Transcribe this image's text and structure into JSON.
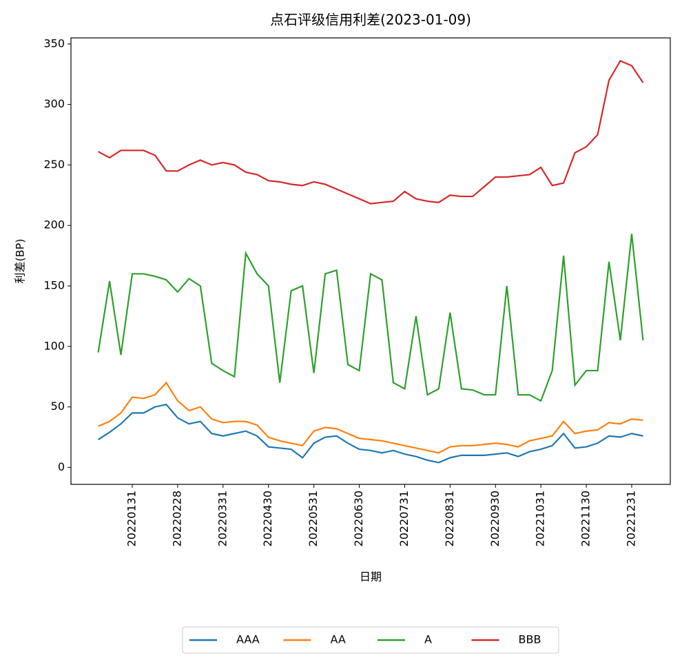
{
  "chart_data": {
    "type": "line",
    "title": "点石评级信用利差(2023-01-09)",
    "x_label": "日期",
    "y_label": "利差(BP)",
    "x": [
      "20220105",
      "20220114",
      "20220121",
      "20220131",
      "20220209",
      "20220215",
      "20220222",
      "20220228",
      "20220308",
      "20220315",
      "20220322",
      "20220331",
      "20220408",
      "20220415",
      "20220422",
      "20220430",
      "20220510",
      "20220517",
      "20220524",
      "20220531",
      "20220609",
      "20220616",
      "20220623",
      "20220630",
      "20220708",
      "20220715",
      "20220722",
      "20220731",
      "20220808",
      "20220815",
      "20220822",
      "20220831",
      "20220908",
      "20220915",
      "20220922",
      "20220930",
      "20221014",
      "20221019",
      "20221025",
      "20221031",
      "20221108",
      "20221115",
      "20221122",
      "20221130",
      "20221208",
      "20221215",
      "20221222",
      "20221231",
      "20230109"
    ],
    "xticks": [
      "20220131",
      "20220228",
      "20220331",
      "20220430",
      "20220531",
      "20220630",
      "20220731",
      "20220831",
      "20220930",
      "20221031",
      "20221130",
      "20221231"
    ],
    "ylim": [
      -14,
      355
    ],
    "yticks": [
      0,
      50,
      100,
      150,
      200,
      250,
      300,
      350
    ],
    "legend": "bottom",
    "series": [
      {
        "name": "AAA",
        "color": "#1f77b4",
        "values": [
          23,
          29,
          36,
          45,
          45,
          50,
          52,
          41,
          36,
          38,
          28,
          26,
          28,
          30,
          26,
          17,
          16,
          15,
          8,
          20,
          25,
          26,
          20,
          15,
          14,
          12,
          14,
          11,
          9,
          6,
          4,
          8,
          10,
          10,
          10,
          11,
          12,
          9,
          13,
          15,
          18,
          28,
          16,
          17,
          20,
          26,
          25,
          28,
          26
        ]
      },
      {
        "name": "AA",
        "color": "#ff7f0e",
        "values": [
          34,
          38,
          45,
          58,
          57,
          60,
          70,
          55,
          47,
          50,
          40,
          37,
          38,
          38,
          35,
          25,
          22,
          20,
          18,
          30,
          33,
          32,
          28,
          24,
          23,
          22,
          20,
          18,
          16,
          14,
          12,
          17,
          18,
          18,
          19,
          20,
          19,
          17,
          22,
          24,
          26,
          38,
          28,
          30,
          31,
          37,
          36,
          40,
          39
        ]
      },
      {
        "name": "A",
        "color": "#2ca02c",
        "values": [
          95,
          154,
          93,
          160,
          160,
          158,
          155,
          145,
          156,
          150,
          86,
          80,
          75,
          177,
          160,
          150,
          70,
          146,
          150,
          78,
          160,
          163,
          85,
          80,
          160,
          155,
          70,
          65,
          125,
          60,
          65,
          128,
          65,
          64,
          60,
          60,
          150,
          60,
          60,
          55,
          80,
          175,
          68,
          80,
          80,
          170,
          105,
          193,
          105
        ]
      },
      {
        "name": "BBB",
        "color": "#d62728",
        "values": [
          261,
          256,
          262,
          262,
          262,
          258,
          245,
          245,
          250,
          254,
          250,
          252,
          250,
          244,
          242,
          237,
          236,
          234,
          233,
          236,
          234,
          230,
          226,
          222,
          218,
          219,
          220,
          228,
          222,
          220,
          219,
          225,
          224,
          224,
          232,
          240,
          240,
          241,
          242,
          248,
          233,
          235,
          260,
          265,
          275,
          320,
          336,
          332,
          318
        ]
      }
    ]
  }
}
